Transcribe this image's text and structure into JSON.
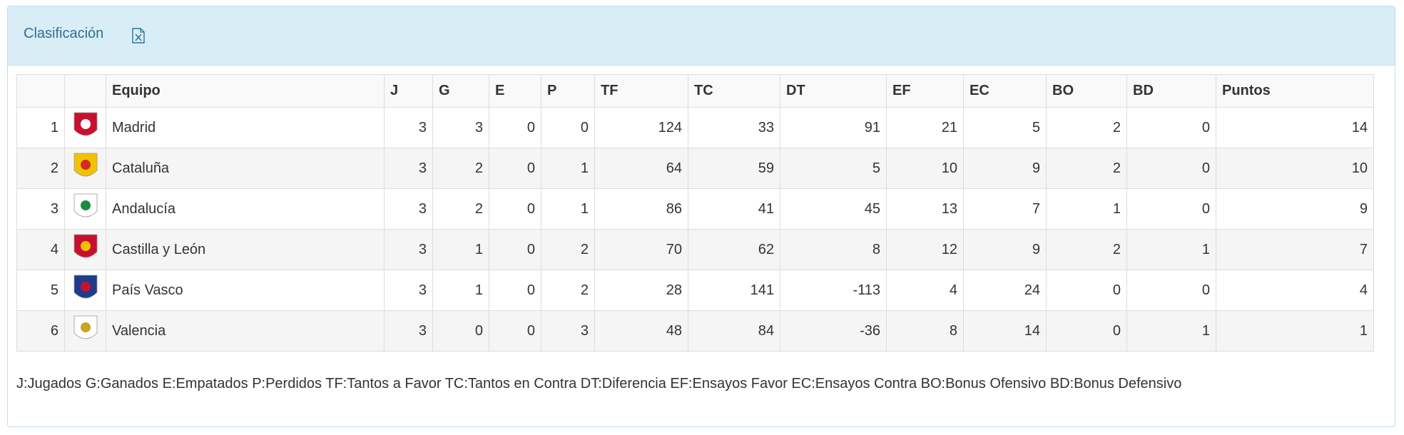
{
  "header": {
    "title": "Clasificación"
  },
  "table": {
    "columns": [
      "Equipo",
      "J",
      "G",
      "E",
      "P",
      "TF",
      "TC",
      "DT",
      "EF",
      "EC",
      "BO",
      "BD",
      "Puntos"
    ],
    "rows": [
      {
        "pos": 1,
        "team": "Madrid",
        "stats": [
          3,
          3,
          0,
          0,
          124,
          33,
          91,
          21,
          5,
          2,
          0,
          14
        ]
      },
      {
        "pos": 2,
        "team": "Cataluña",
        "stats": [
          3,
          2,
          0,
          1,
          64,
          59,
          5,
          10,
          9,
          2,
          0,
          10
        ]
      },
      {
        "pos": 3,
        "team": "Andalucía",
        "stats": [
          3,
          2,
          0,
          1,
          86,
          41,
          45,
          13,
          7,
          1,
          0,
          9
        ]
      },
      {
        "pos": 4,
        "team": "Castilla y León",
        "stats": [
          3,
          1,
          0,
          2,
          70,
          62,
          8,
          12,
          9,
          2,
          1,
          7
        ]
      },
      {
        "pos": 5,
        "team": "País Vasco",
        "stats": [
          3,
          1,
          0,
          2,
          28,
          141,
          -113,
          4,
          24,
          0,
          0,
          4
        ]
      },
      {
        "pos": 6,
        "team": "Valencia",
        "stats": [
          3,
          0,
          0,
          3,
          48,
          84,
          -36,
          8,
          14,
          0,
          1,
          1
        ]
      }
    ]
  },
  "legend": "J:Jugados G:Ganados E:Empatados P:Perdidos TF:Tantos a Favor TC:Tantos en Contra DT:Diferencia EF:Ensayos Favor EC:Ensayos Contra BO:Bonus Ofensivo BD:Bonus Defensivo"
}
